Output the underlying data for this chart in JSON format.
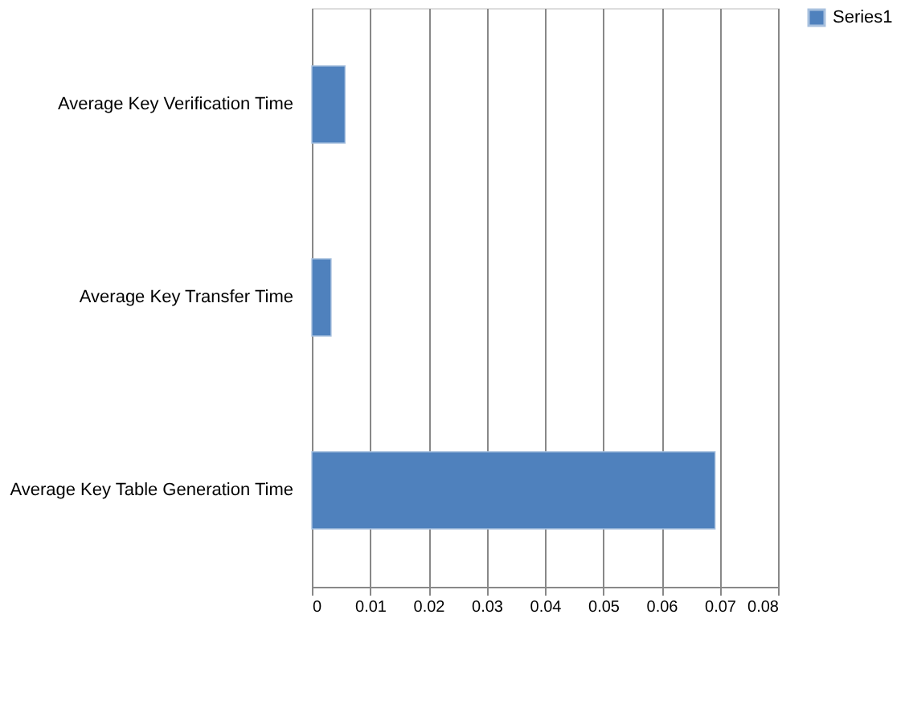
{
  "chart_data": {
    "type": "bar",
    "orientation": "horizontal",
    "categories": [
      "Average Key Verification Time",
      "Average Key Transfer Time",
      "Average Key Table Generation Time"
    ],
    "series": [
      {
        "name": "Series1",
        "color": "#4f81bd",
        "values": [
          0.0057,
          0.0033,
          0.0692
        ]
      }
    ],
    "xlim": [
      0,
      0.08
    ],
    "xticks": [
      0,
      0.01,
      0.02,
      0.03,
      0.04,
      0.05,
      0.06,
      0.07,
      0.08
    ],
    "grid": "x",
    "legend": "right"
  }
}
